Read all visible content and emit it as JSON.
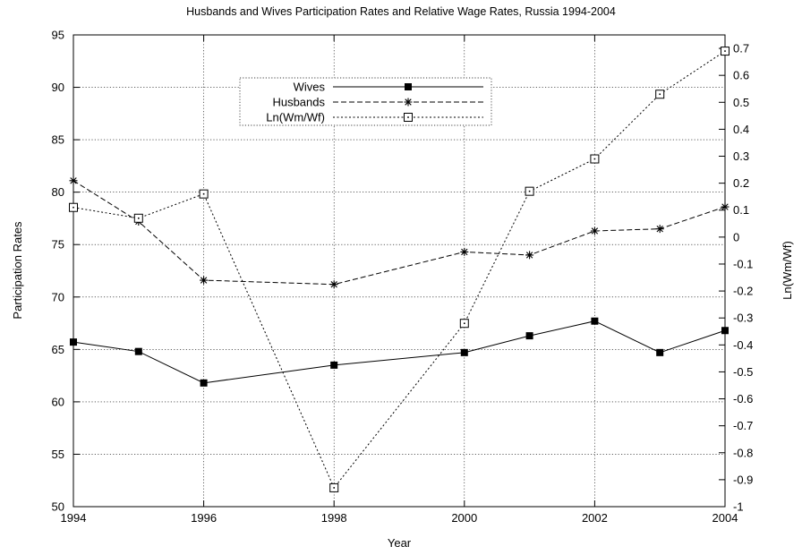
{
  "chart_data": {
    "type": "line",
    "title": "Husbands and Wives Participation Rates and Relative Wage Rates, Russia 1994-2004",
    "xlabel": "Year",
    "ylabel": "Participation Rates",
    "y2label": "Ln(Wm/Wf)",
    "xlim": [
      1994,
      2004
    ],
    "ylim": [
      50,
      95
    ],
    "y2lim": [
      -1,
      0.75
    ],
    "x_ticks": [
      "1994",
      "1996",
      "1998",
      "2000",
      "2002",
      "2004"
    ],
    "y_ticks": [
      "50",
      "55",
      "60",
      "65",
      "70",
      "75",
      "80",
      "85",
      "90",
      "95"
    ],
    "y2_ticks": [
      "-1",
      "-0.9",
      "-0.8",
      "-0.7",
      "-0.6",
      "-0.5",
      "-0.4",
      "-0.3",
      "-0.2",
      "-0.1",
      "0",
      "0.1",
      "0.2",
      "0.3",
      "0.4",
      "0.5",
      "0.6",
      "0.7"
    ],
    "grid": true,
    "legend_position": "top-center",
    "series": [
      {
        "name": "Wives",
        "axis": "left",
        "line": "solid",
        "marker": "filled-square",
        "points": [
          [
            1994,
            65.7
          ],
          [
            1995,
            64.8
          ],
          [
            1996,
            61.8
          ],
          [
            1998,
            63.5
          ],
          [
            2000,
            64.7
          ],
          [
            2001,
            66.3
          ],
          [
            2002,
            67.7
          ],
          [
            2003,
            64.7
          ],
          [
            2004,
            66.8
          ]
        ]
      },
      {
        "name": "Husbands",
        "axis": "left",
        "line": "dashed",
        "marker": "star",
        "points": [
          [
            1994,
            81.1
          ],
          [
            1995,
            77.2
          ],
          [
            1996,
            71.6
          ],
          [
            1998,
            71.2
          ],
          [
            2000,
            74.3
          ],
          [
            2001,
            74.0
          ],
          [
            2002,
            76.3
          ],
          [
            2003,
            76.5
          ],
          [
            2004,
            78.6
          ]
        ]
      },
      {
        "name": "Ln(Wm/Wf)",
        "axis": "right",
        "line": "dotted",
        "marker": "open-square",
        "points": [
          [
            1994,
            0.11
          ],
          [
            1995,
            0.07
          ],
          [
            1996,
            0.16
          ],
          [
            1998,
            -0.93
          ],
          [
            2000,
            -0.32
          ],
          [
            2001,
            0.17
          ],
          [
            2002,
            0.29
          ],
          [
            2003,
            0.53
          ],
          [
            2004,
            0.69
          ]
        ]
      }
    ]
  }
}
